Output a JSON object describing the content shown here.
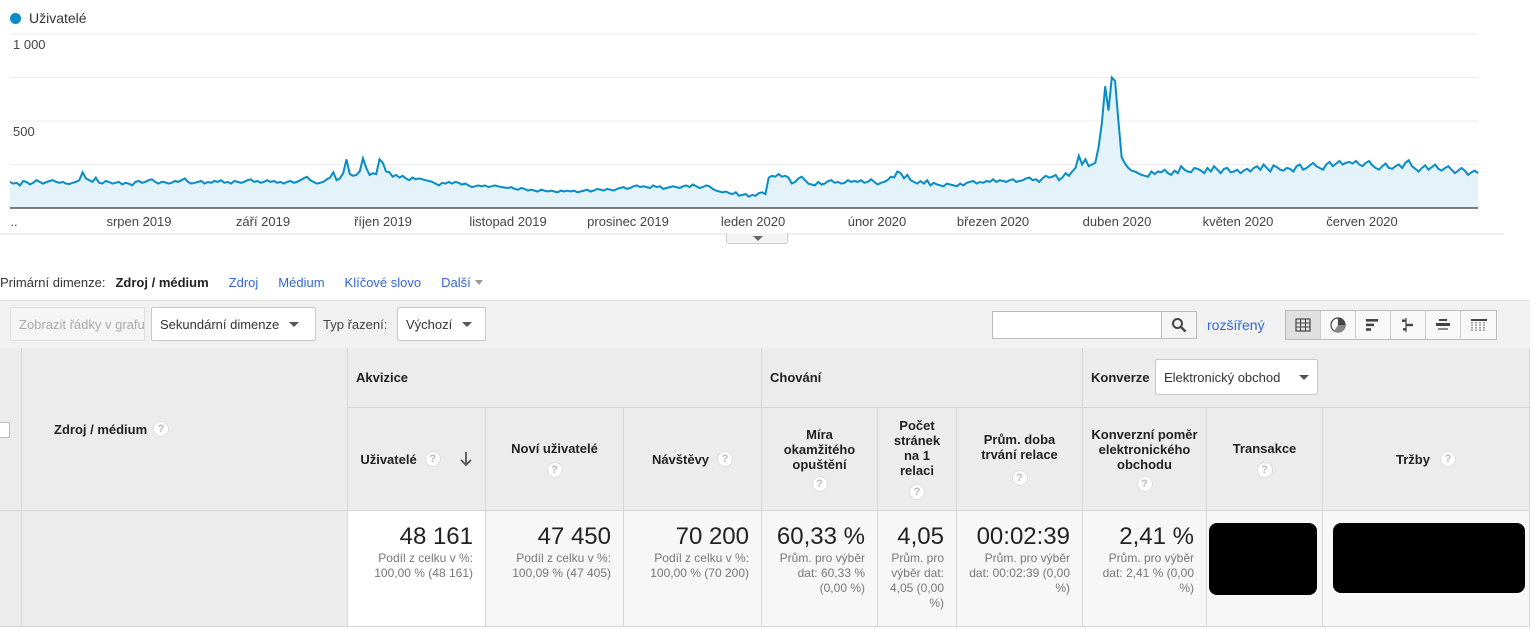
{
  "chart": {
    "legend_label": "Uživatelé",
    "y_ticks": [
      "1 000",
      "500"
    ],
    "x_labels": [
      "..",
      "srpen 2019",
      "září 2019",
      "říjen 2019",
      "listopad 2019",
      "prosinec 2019",
      "leden 2020",
      "únor 2020",
      "březen 2020",
      "duben 2020",
      "květen 2020",
      "červen 2020"
    ]
  },
  "chart_data": {
    "type": "area",
    "ylim": [
      0,
      1000
    ],
    "series": [
      {
        "name": "Uživatelé",
        "values": [
          150,
          140,
          145,
          130,
          155,
          150,
          135,
          145,
          160,
          150,
          140,
          148,
          155,
          160,
          150,
          145,
          150,
          140,
          138,
          145,
          150,
          160,
          205,
          170,
          160,
          150,
          175,
          145,
          140,
          155,
          150,
          140,
          145,
          150,
          135,
          145,
          140,
          130,
          150,
          155,
          145,
          150,
          160,
          165,
          150,
          140,
          150,
          148,
          140,
          145,
          155,
          150,
          160,
          170,
          150,
          140,
          145,
          150,
          155,
          140,
          150,
          145,
          155,
          150,
          160,
          145,
          150,
          140,
          155,
          150,
          145,
          150,
          160,
          165,
          150,
          155,
          145,
          150,
          160,
          150,
          155,
          145,
          150,
          140,
          150,
          155,
          145,
          150,
          160,
          170,
          180,
          160,
          150,
          140,
          145,
          150,
          165,
          175,
          205,
          160,
          170,
          200,
          280,
          195,
          185,
          190,
          210,
          285,
          230,
          190,
          200,
          195,
          280,
          260,
          210,
          205,
          180,
          190,
          175,
          185,
          170,
          160,
          175,
          165,
          170,
          165,
          160,
          155,
          150,
          140,
          130,
          145,
          140,
          150,
          140,
          150,
          145,
          135,
          140,
          130,
          120,
          125,
          130,
          125,
          130,
          120,
          125,
          130,
          125,
          120,
          118,
          115,
          120,
          110,
          105,
          115,
          110,
          100,
          105,
          100,
          95,
          105,
          100,
          95,
          100,
          95,
          90,
          100,
          95,
          100,
          95,
          100,
          90,
          95,
          100,
          105,
          95,
          100,
          110,
          105,
          100,
          110,
          105,
          100,
          110,
          115,
          120,
          110,
          115,
          125,
          130,
          120,
          125,
          120,
          115,
          130,
          120,
          125,
          110,
          115,
          120,
          125,
          120,
          115,
          125,
          130,
          120,
          135,
          125,
          115,
          120,
          130,
          125,
          110,
          100,
          95,
          90,
          95,
          85,
          80,
          90,
          70,
          75,
          80,
          65,
          75,
          70,
          85,
          90,
          80,
          175,
          185,
          180,
          195,
          180,
          185,
          175,
          140,
          150,
          170,
          180,
          160,
          140,
          135,
          130,
          150,
          135,
          140,
          155,
          160,
          145,
          150,
          140,
          145,
          160,
          150,
          155,
          150,
          160,
          145,
          150,
          165,
          150,
          135,
          145,
          150,
          160,
          180,
          175,
          210,
          200,
          170,
          190,
          160,
          150,
          140,
          155,
          140,
          160,
          130,
          145,
          135,
          130,
          125,
          140,
          135,
          130,
          125,
          140,
          130,
          145,
          150,
          155,
          140,
          150,
          145,
          155,
          150,
          165,
          150,
          160,
          155,
          150,
          160,
          165,
          150,
          155,
          160,
          170,
          175,
          160,
          165,
          150,
          170,
          185,
          175,
          180,
          190,
          160,
          175,
          200,
          185,
          210,
          230,
          300,
          250,
          280,
          240,
          250,
          260,
          350,
          490,
          700,
          560,
          750,
          730,
          500,
          290,
          255,
          230,
          215,
          210,
          200,
          190,
          185,
          180,
          210,
          195,
          210,
          205,
          220,
          200,
          190,
          215,
          200,
          240,
          220,
          210,
          205,
          230,
          225,
          215,
          200,
          230,
          210,
          240,
          220,
          200,
          225,
          230,
          205,
          210,
          220,
          200,
          215,
          225,
          210,
          230,
          240,
          220,
          250,
          230,
          210,
          245,
          235,
          220,
          215,
          230,
          225,
          210,
          240,
          250,
          220,
          230,
          245,
          260,
          240,
          230,
          220,
          250,
          265,
          240,
          255,
          270,
          250,
          260,
          265,
          255,
          270,
          250,
          240,
          260,
          270,
          245,
          230,
          220,
          240,
          255,
          230,
          225,
          240,
          250,
          230,
          260,
          275,
          240,
          225,
          210,
          230,
          245,
          220,
          235,
          250,
          225,
          215,
          230,
          240,
          220,
          200,
          215,
          230,
          215,
          190,
          205,
          215,
          200
        ],
        "color": "#058dc7",
        "fill": "#e4f2f9"
      }
    ]
  },
  "primary_dimension": {
    "label": "Primární dimenze:",
    "active": "Zdroj / médium",
    "links": [
      "Zdroj",
      "Médium",
      "Klíčové slovo"
    ],
    "more": "Další"
  },
  "toolbar": {
    "plot_rows": "Zobrazit řádky v grafu",
    "secondary_dimension": "Sekundární dimenze",
    "sort_type_label": "Typ řazení:",
    "sort_type_value": "Výchozí",
    "search_value": "",
    "advanced": "rozšířený"
  },
  "table": {
    "dimension_header": "Zdroj / médium",
    "groups": {
      "acquisition": "Akvizice",
      "behavior": "Chování",
      "conversions": "Konverze",
      "conversion_select": "Elektronický obchod"
    },
    "columns": {
      "users": "Uživatelé",
      "new_users": "Noví uživatelé",
      "sessions": "Návštěvy",
      "bounce_rate": "Míra okamžitého opuštění",
      "pages_per_session": "Počet stránek na 1 relaci",
      "avg_session_duration": "Prům. doba trvání relace",
      "ecommerce_conversion_rate": "Konverzní poměr elektronického obchodu",
      "transactions": "Transakce",
      "revenue": "Tržby"
    },
    "help_glyph": "?",
    "totals": {
      "users": {
        "value": "48 161",
        "sub": "Podíl z celku v %: 100,00 % (48 161)"
      },
      "new_users": {
        "value": "47 450",
        "sub": "Podíl z celku v %: 100,09 % (47 405)"
      },
      "sessions": {
        "value": "70 200",
        "sub": "Podíl z celku v %: 100,00 % (70 200)"
      },
      "bounce_rate": {
        "value": "60,33 %",
        "sub": "Prům. pro výběr dat: 60,33 % (0,00 %)"
      },
      "pages_per_session": {
        "value": "4,05",
        "sub": "Prům. pro výběr dat: 4,05 (0,00 %)"
      },
      "avg_session_duration": {
        "value": "00:02:39",
        "sub": "Prům. pro výběr dat: 00:02:39 (0,00 %)"
      },
      "ecommerce_conversion_rate": {
        "value": "2,41 %",
        "sub": "Prům. pro výběr dat: 2,41 % (0,00 %)"
      }
    }
  },
  "icons": {
    "search": "search-icon",
    "sort_arrow": "arrow-down-icon",
    "view_table": "table-view-icon",
    "view_pie": "pie-view-icon",
    "view_performance": "bar-view-icon",
    "view_comparison": "comparison-view-icon",
    "view_term_cloud": "term-cloud-icon",
    "view_pivot": "pivot-view-icon"
  }
}
